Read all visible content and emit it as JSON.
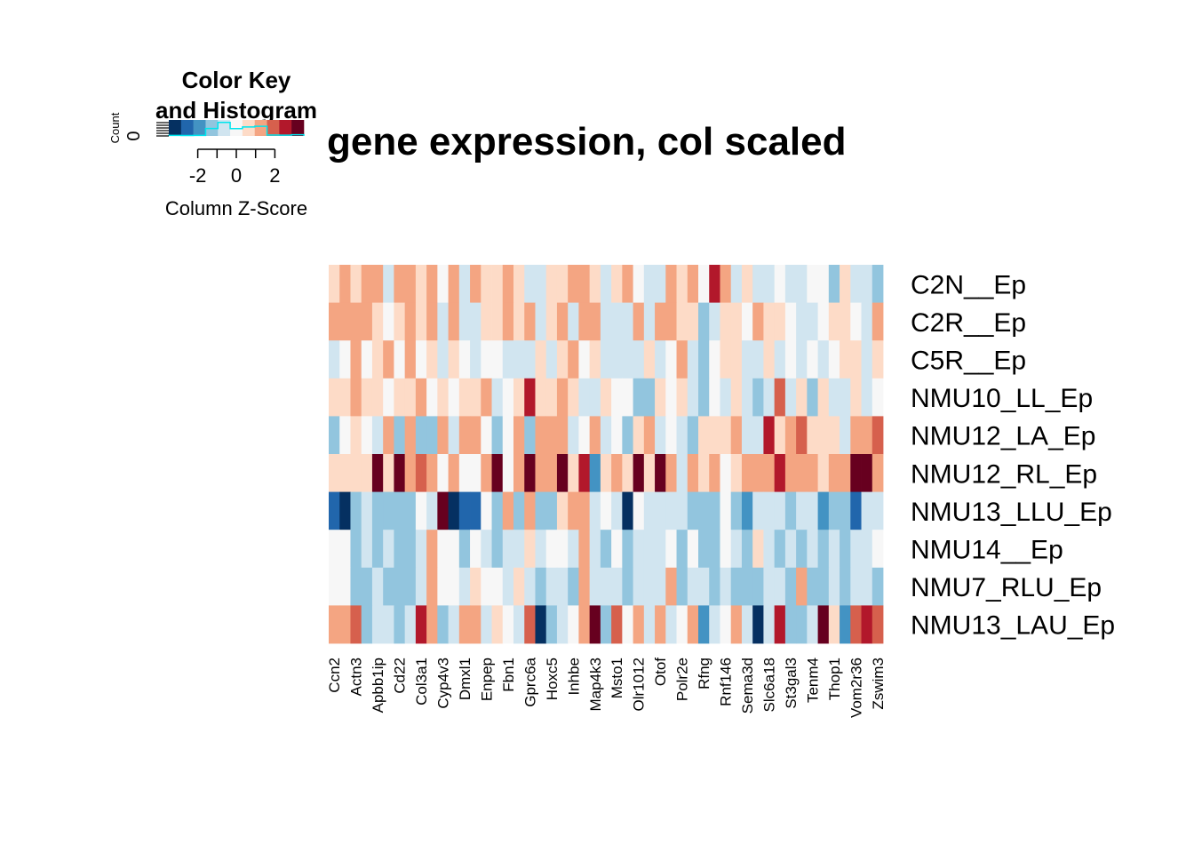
{
  "chart_data": {
    "type": "heatmap",
    "title": "gene expression, col scaled",
    "rows": [
      "C2N__Ep",
      "C2R__Ep",
      "C5R__Ep",
      "NMU10_LL_Ep",
      "NMU12_LA_Ep",
      "NMU12_RL_Ep",
      "NMU13_LLU_Ep",
      "NMU14__Ep",
      "NMU7_RLU_Ep",
      "NMU13_LAU_Ep"
    ],
    "column_labels": [
      "Ccn2",
      "Actn3",
      "Apbb1ip",
      "Cd22",
      "Col3a1",
      "Cyp4v3",
      "Dmxl1",
      "Enpep",
      "Fbn1",
      "Gprc6a",
      "Hoxc5",
      "Inhbe",
      "Map4k3",
      "Msto1",
      "Olr1012",
      "Otof",
      "Polr2e",
      "Rfng",
      "Rnf146",
      "Sema3d",
      "Slc6a18",
      "St3gal3",
      "Tenm4",
      "Thop1",
      "Vom2r36",
      "Zswim3"
    ],
    "n_columns": 51,
    "values": [
      [
        0.5,
        1.5,
        0.5,
        1.5,
        1,
        -0.5,
        1,
        1.5,
        0.5,
        1.5,
        0,
        1.5,
        -0.5,
        1,
        0.5,
        0.5,
        1.5,
        0.5,
        -0.5,
        -0.5,
        0.5,
        0.5,
        1.5,
        1.5,
        0.5,
        -0.5,
        0.5,
        1.5,
        0,
        -0.5,
        -0.5,
        1,
        0.5,
        1,
        0,
        2.5,
        1,
        -0.5,
        0.5,
        -0.5,
        -0.5,
        0,
        -0.5,
        -0.5,
        0,
        0,
        -1,
        0.5,
        -0.5,
        -0.5,
        -1.5
      ],
      [
        1,
        1,
        1,
        1,
        0.5,
        0,
        0.5,
        1,
        0.5,
        1,
        -0.5,
        1.5,
        -0.5,
        -0.5,
        0.5,
        0.5,
        1,
        0.5,
        1,
        -0.5,
        0.5,
        1,
        -0.5,
        1,
        1,
        -0.5,
        -0.5,
        -0.5,
        1.5,
        -0.5,
        1.5,
        1,
        0.5,
        0.5,
        -1,
        -0.5,
        0.5,
        0.5,
        0,
        1,
        0.5,
        0.5,
        0,
        -0.5,
        -0.5,
        0,
        0.5,
        0.5,
        0,
        -0.5,
        1
      ],
      [
        -0.5,
        0,
        1,
        0,
        0.5,
        1,
        0,
        1.5,
        0,
        0.5,
        -0.5,
        0.5,
        0,
        -0.5,
        0,
        0,
        -0.5,
        -0.5,
        -0.5,
        0.5,
        -0.5,
        0.5,
        1,
        0,
        0.5,
        -0.5,
        -0.5,
        -0.5,
        -0.5,
        0.5,
        -0.5,
        0,
        1,
        -0.5,
        -1,
        0,
        0.5,
        0.5,
        -0.5,
        -0.5,
        0.5,
        -0.5,
        0,
        -0.5,
        0,
        -0.5,
        0,
        0.5,
        0.5,
        -0.5,
        0.5
      ],
      [
        0.5,
        0.5,
        1,
        0.5,
        0.5,
        0,
        0.5,
        0.5,
        1.5,
        0,
        0.5,
        0,
        0.5,
        0.5,
        1,
        -0.5,
        0,
        0.5,
        2.5,
        0.5,
        0.5,
        1,
        0.5,
        -0.5,
        -0.5,
        0.5,
        0,
        0,
        -1.5,
        -1,
        0.5,
        0,
        0.5,
        -0.5,
        -1,
        0,
        -0.5,
        0.5,
        -0.5,
        -1.5,
        -0.5,
        2,
        -0.5,
        0.5,
        -1,
        0.5,
        -0.5,
        -0.5,
        0.5,
        -0.5,
        0
      ],
      [
        -1,
        0,
        0.5,
        0,
        -0.5,
        1,
        -1,
        1.5,
        -1,
        -1,
        1,
        -0.5,
        1,
        1.5,
        0,
        -1,
        0,
        1,
        -1,
        1,
        1,
        1,
        -0.5,
        0,
        1,
        -0.5,
        0,
        -1.5,
        0.5,
        1,
        -0.5,
        0,
        -0.5,
        -1.5,
        0.5,
        0.5,
        0.5,
        1,
        -0.5,
        -0.5,
        2.5,
        0.5,
        1.5,
        2,
        0.5,
        0.5,
        0.5,
        -0.5,
        1.5,
        1.5,
        2
      ],
      [
        0.5,
        0.5,
        0.5,
        0.5,
        3,
        0.5,
        3,
        1,
        2,
        1.5,
        0,
        1,
        0,
        0,
        1.5,
        3,
        0,
        1,
        3,
        1,
        1,
        3,
        0.5,
        2.5,
        -2,
        0.5,
        1,
        0.5,
        3.5,
        0.5,
        3.5,
        1,
        -0.5,
        1,
        0.5,
        1,
        0,
        0.5,
        1,
        1,
        1.5,
        2.5,
        1.5,
        1.5,
        1,
        0.5,
        1,
        1,
        3.5,
        3,
        1.5
      ],
      [
        -2.5,
        -3.5,
        -1.5,
        -0.5,
        -1.5,
        -1,
        -1,
        -1,
        0,
        -0.5,
        3,
        -3.5,
        -2.5,
        -2.5,
        0,
        -1,
        1,
        -1.5,
        1,
        -1.5,
        -1.5,
        0.5,
        1,
        1,
        -0.5,
        0,
        -0.5,
        -3.5,
        0,
        -0.5,
        -0.5,
        -0.5,
        -0.5,
        -1.5,
        -1,
        -1.5,
        0,
        -1.5,
        -2,
        -0.5,
        -0.5,
        -0.5,
        -1.5,
        -0.5,
        -0.5,
        -2,
        -1,
        -1,
        -2.5,
        -0.5,
        -0.5
      ],
      [
        0,
        0,
        -1,
        -0.5,
        -1,
        -0.5,
        -1,
        -1,
        -0.5,
        1,
        0,
        0,
        -1,
        0,
        -0.5,
        -1,
        -0.5,
        -0.5,
        0.5,
        -0.5,
        0,
        0,
        -0.5,
        1,
        -0.5,
        -1,
        0,
        -1.5,
        -0.5,
        -0.5,
        -0.5,
        0,
        -1,
        0,
        -1,
        -1,
        0,
        -0.5,
        -1,
        0.5,
        -0.5,
        -1,
        -0.5,
        -1.5,
        -0.5,
        -1,
        -0.5,
        -1,
        -0.5,
        -0.5,
        0
      ],
      [
        0,
        0,
        -1,
        -1.5,
        -0.5,
        -1,
        -1,
        -1,
        -0.5,
        1,
        0,
        0,
        -0.5,
        0.5,
        0,
        0,
        -0.5,
        0.5,
        -0.5,
        -1.5,
        -0.5,
        -0.5,
        -1,
        1.5,
        -0.5,
        -0.5,
        -0.5,
        -1.5,
        -0.5,
        -0.5,
        -0.5,
        1,
        -1,
        -0.5,
        -0.5,
        -1,
        -0.5,
        -1,
        -1.5,
        -1,
        -0.5,
        -0.5,
        -1,
        1,
        -1,
        -1,
        -0.5,
        -1,
        -0.5,
        -0.5,
        -1.5
      ],
      [
        1.5,
        1,
        2,
        -1,
        -0.5,
        -0.5,
        -1,
        -0.5,
        2.5,
        1,
        -1,
        -0.5,
        1,
        1,
        -0.5,
        0.5,
        0,
        -0.5,
        2,
        -3,
        -1.5,
        -0.5,
        0,
        1,
        3.5,
        -1,
        2,
        0,
        1,
        -0.5,
        1,
        -0.5,
        0,
        1,
        -2,
        -0.5,
        0,
        1,
        -0.5,
        -3,
        -0.5,
        2.5,
        -1,
        -1.5,
        -0.5,
        3,
        0.5,
        -2,
        2,
        2.5,
        2
      ]
    ],
    "color_key": {
      "title": "Color Key and Histogram",
      "xlabel": "Column Z-Score",
      "ylabel": "Count",
      "y_tick": "0",
      "x_ticks": [
        "-2",
        "0",
        "2"
      ],
      "range": [
        -3.5,
        3.5
      ],
      "palette": [
        "#053061",
        "#2166ac",
        "#4393c3",
        "#92c5de",
        "#d1e5f0",
        "#f7f7f7",
        "#fddbc7",
        "#f4a582",
        "#d6604d",
        "#b2182b",
        "#67001f"
      ],
      "histogram_color": "#00e5ee"
    }
  }
}
